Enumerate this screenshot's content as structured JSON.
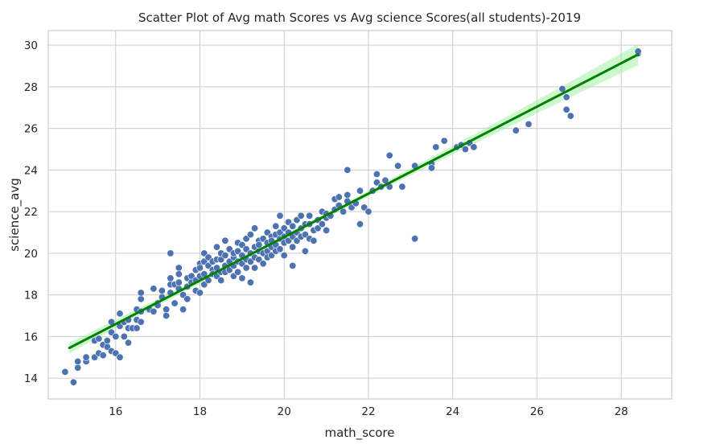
{
  "chart_data": {
    "type": "scatter",
    "title": "Scatter Plot of Avg math Scores vs  Avg science Scores(all students)-2019",
    "xlabel": "math_score",
    "ylabel": "science_avg",
    "xlim": [
      14.4,
      29.2
    ],
    "ylim": [
      13.0,
      30.7
    ],
    "xticks": [
      16,
      18,
      20,
      22,
      24,
      26,
      28
    ],
    "yticks": [
      14,
      16,
      18,
      20,
      22,
      24,
      26,
      28,
      30
    ],
    "grid": true,
    "colors": {
      "points": "#4c72b0",
      "regression": "#008000",
      "ci_band": "#90ee90"
    },
    "regression": {
      "x": [
        14.9,
        28.4
      ],
      "y": [
        15.45,
        29.55
      ]
    },
    "points": [
      [
        14.8,
        14.3
      ],
      [
        15.0,
        13.8
      ],
      [
        15.1,
        14.5
      ],
      [
        15.1,
        14.8
      ],
      [
        15.3,
        14.8
      ],
      [
        15.3,
        15.0
      ],
      [
        15.5,
        15.0
      ],
      [
        15.5,
        15.8
      ],
      [
        15.6,
        15.9
      ],
      [
        15.6,
        15.2
      ],
      [
        15.7,
        15.6
      ],
      [
        15.7,
        15.1
      ],
      [
        15.8,
        15.5
      ],
      [
        15.8,
        15.8
      ],
      [
        15.9,
        16.7
      ],
      [
        15.9,
        16.2
      ],
      [
        15.9,
        15.3
      ],
      [
        16.0,
        16.0
      ],
      [
        16.0,
        15.2
      ],
      [
        16.1,
        16.5
      ],
      [
        16.1,
        17.1
      ],
      [
        16.1,
        15.0
      ],
      [
        16.2,
        16.7
      ],
      [
        16.2,
        16.0
      ],
      [
        16.3,
        15.7
      ],
      [
        16.3,
        16.8
      ],
      [
        16.3,
        16.4
      ],
      [
        16.4,
        16.4
      ],
      [
        16.5,
        16.8
      ],
      [
        16.5,
        17.3
      ],
      [
        16.5,
        16.4
      ],
      [
        16.6,
        17.2
      ],
      [
        16.6,
        17.8
      ],
      [
        16.6,
        18.1
      ],
      [
        16.6,
        16.7
      ],
      [
        16.8,
        17.3
      ],
      [
        16.8,
        17.3
      ],
      [
        16.9,
        17.2
      ],
      [
        16.9,
        18.3
      ],
      [
        17.0,
        17.6
      ],
      [
        17.0,
        17.5
      ],
      [
        17.1,
        17.9
      ],
      [
        17.1,
        18.2
      ],
      [
        17.2,
        17.3
      ],
      [
        17.2,
        17.0
      ],
      [
        17.3,
        18.1
      ],
      [
        17.3,
        18.5
      ],
      [
        17.3,
        18.8
      ],
      [
        17.3,
        20.0
      ],
      [
        17.4,
        18.5
      ],
      [
        17.4,
        17.6
      ],
      [
        17.5,
        18.3
      ],
      [
        17.5,
        18.6
      ],
      [
        17.5,
        19.3
      ],
      [
        17.5,
        19.0
      ],
      [
        17.6,
        18.0
      ],
      [
        17.6,
        17.3
      ],
      [
        17.7,
        18.4
      ],
      [
        17.7,
        17.8
      ],
      [
        17.7,
        18.8
      ],
      [
        17.8,
        18.9
      ],
      [
        17.8,
        18.6
      ],
      [
        17.9,
        19.2
      ],
      [
        17.9,
        18.7
      ],
      [
        17.9,
        18.2
      ],
      [
        18.0,
        19.5
      ],
      [
        18.0,
        18.9
      ],
      [
        18.0,
        18.1
      ],
      [
        18.0,
        19.3
      ],
      [
        18.1,
        19.6
      ],
      [
        18.1,
        19.0
      ],
      [
        18.1,
        20.0
      ],
      [
        18.1,
        18.5
      ],
      [
        18.2,
        19.4
      ],
      [
        18.2,
        18.7
      ],
      [
        18.2,
        19.8
      ],
      [
        18.3,
        19.2
      ],
      [
        18.3,
        19.6
      ],
      [
        18.3,
        19.0
      ],
      [
        18.4,
        18.9
      ],
      [
        18.4,
        19.7
      ],
      [
        18.4,
        20.3
      ],
      [
        18.4,
        19.3
      ],
      [
        18.5,
        19.1
      ],
      [
        18.5,
        19.7
      ],
      [
        18.5,
        20.0
      ],
      [
        18.5,
        18.7
      ],
      [
        18.6,
        19.4
      ],
      [
        18.6,
        20.6
      ],
      [
        18.6,
        19.9
      ],
      [
        18.6,
        19.1
      ],
      [
        18.7,
        19.6
      ],
      [
        18.7,
        19.2
      ],
      [
        18.7,
        20.2
      ],
      [
        18.8,
        19.8
      ],
      [
        18.8,
        20.0
      ],
      [
        18.8,
        18.9
      ],
      [
        18.8,
        19.4
      ],
      [
        18.9,
        20.5
      ],
      [
        18.9,
        19.6
      ],
      [
        18.9,
        19.1
      ],
      [
        18.9,
        20.1
      ],
      [
        19.0,
        19.9
      ],
      [
        19.0,
        19.5
      ],
      [
        19.0,
        20.4
      ],
      [
        19.0,
        18.8
      ],
      [
        19.1,
        19.7
      ],
      [
        19.1,
        20.2
      ],
      [
        19.1,
        19.3
      ],
      [
        19.1,
        20.7
      ],
      [
        19.2,
        20.0
      ],
      [
        19.2,
        19.6
      ],
      [
        19.2,
        20.9
      ],
      [
        19.2,
        18.6
      ],
      [
        19.3,
        20.3
      ],
      [
        19.3,
        19.8
      ],
      [
        19.3,
        19.3
      ],
      [
        19.3,
        21.2
      ],
      [
        19.4,
        20.6
      ],
      [
        19.4,
        20.1
      ],
      [
        19.4,
        19.7
      ],
      [
        19.4,
        20.4
      ],
      [
        19.5,
        20.0
      ],
      [
        19.5,
        20.7
      ],
      [
        19.5,
        19.5
      ],
      [
        19.6,
        20.5
      ],
      [
        19.6,
        20.1
      ],
      [
        19.6,
        21.0
      ],
      [
        19.6,
        19.8
      ],
      [
        19.7,
        20.3
      ],
      [
        19.7,
        20.8
      ],
      [
        19.7,
        19.9
      ],
      [
        19.7,
        20.6
      ],
      [
        19.8,
        20.9
      ],
      [
        19.8,
        20.4
      ],
      [
        19.8,
        21.3
      ],
      [
        19.8,
        20.1
      ],
      [
        19.9,
        20.7
      ],
      [
        19.9,
        21.0
      ],
      [
        19.9,
        20.2
      ],
      [
        19.9,
        21.8
      ],
      [
        20.0,
        20.8
      ],
      [
        20.0,
        20.5
      ],
      [
        20.0,
        21.2
      ],
      [
        20.0,
        19.9
      ],
      [
        20.1,
        21.0
      ],
      [
        20.1,
        20.6
      ],
      [
        20.1,
        21.5
      ],
      [
        20.2,
        20.8
      ],
      [
        20.2,
        21.3
      ],
      [
        20.2,
        19.4
      ],
      [
        20.2,
        20.3
      ],
      [
        20.3,
        21.0
      ],
      [
        20.3,
        20.6
      ],
      [
        20.3,
        21.6
      ],
      [
        20.4,
        21.2
      ],
      [
        20.4,
        20.8
      ],
      [
        20.4,
        21.8
      ],
      [
        20.5,
        21.4
      ],
      [
        20.5,
        20.9
      ],
      [
        20.5,
        20.1
      ],
      [
        20.6,
        21.4
      ],
      [
        20.6,
        20.7
      ],
      [
        20.6,
        21.8
      ],
      [
        20.7,
        21.1
      ],
      [
        20.7,
        20.6
      ],
      [
        20.8,
        21.6
      ],
      [
        20.8,
        21.2
      ],
      [
        20.9,
        22.0
      ],
      [
        20.9,
        21.4
      ],
      [
        21.0,
        21.7
      ],
      [
        21.0,
        21.9
      ],
      [
        21.0,
        21.1
      ],
      [
        21.1,
        21.8
      ],
      [
        21.2,
        22.1
      ],
      [
        21.2,
        22.6
      ],
      [
        21.3,
        22.3
      ],
      [
        21.3,
        22.7
      ],
      [
        21.4,
        22.0
      ],
      [
        21.5,
        22.8
      ],
      [
        21.5,
        22.5
      ],
      [
        21.5,
        24.0
      ],
      [
        21.6,
        22.2
      ],
      [
        21.7,
        22.4
      ],
      [
        21.8,
        21.4
      ],
      [
        21.8,
        23.0
      ],
      [
        21.9,
        22.2
      ],
      [
        22.0,
        22.0
      ],
      [
        22.1,
        23.0
      ],
      [
        22.2,
        23.4
      ],
      [
        22.2,
        23.8
      ],
      [
        22.3,
        23.2
      ],
      [
        22.4,
        23.5
      ],
      [
        22.5,
        23.2
      ],
      [
        22.5,
        24.7
      ],
      [
        22.7,
        24.2
      ],
      [
        22.8,
        23.2
      ],
      [
        23.1,
        24.2
      ],
      [
        23.1,
        20.7
      ],
      [
        23.5,
        24.3
      ],
      [
        23.5,
        24.1
      ],
      [
        23.6,
        25.1
      ],
      [
        23.8,
        25.4
      ],
      [
        24.1,
        25.1
      ],
      [
        24.2,
        25.2
      ],
      [
        24.3,
        25.0
      ],
      [
        24.4,
        25.3
      ],
      [
        24.5,
        25.1
      ],
      [
        25.5,
        25.9
      ],
      [
        25.8,
        26.2
      ],
      [
        26.6,
        27.9
      ],
      [
        26.7,
        27.5
      ],
      [
        26.7,
        26.9
      ],
      [
        26.8,
        26.6
      ],
      [
        28.4,
        29.6
      ],
      [
        28.4,
        29.7
      ]
    ]
  }
}
